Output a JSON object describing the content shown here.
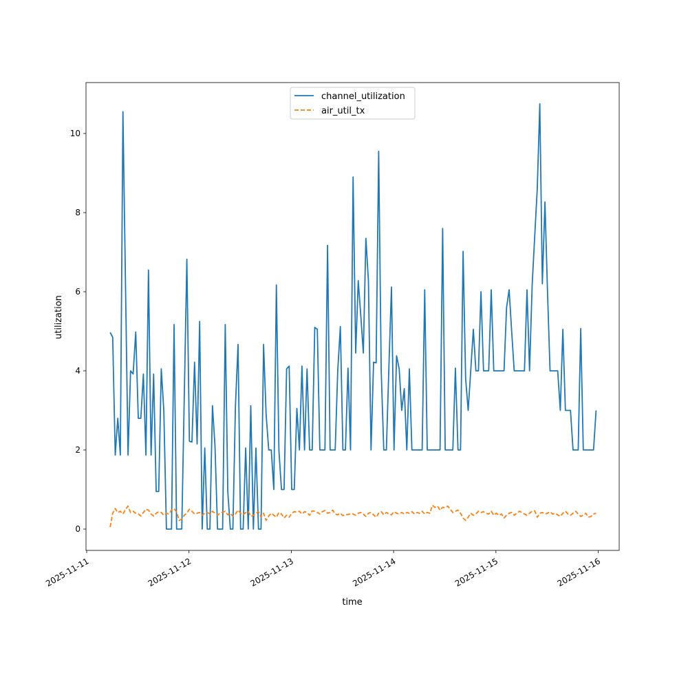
{
  "chart_data": {
    "type": "line",
    "title": "",
    "xlabel": "time",
    "ylabel": "utilization",
    "x_start": "2025-11-11T05:30",
    "x_interval_minutes": 36,
    "xlim_days_since_2025_11_11": [
      -0.01,
      5.21
    ],
    "ylim": [
      -0.54,
      11.3
    ],
    "x_ticks": [
      "2025-11-11",
      "2025-11-12",
      "2025-11-13",
      "2025-11-14",
      "2025-11-15",
      "2025-11-16"
    ],
    "y_ticks": [
      0,
      2,
      4,
      6,
      8,
      10
    ],
    "y_tick_labels": [
      "0",
      "2",
      "4",
      "6",
      "8",
      "10"
    ],
    "legend_position": "upper-center",
    "series": [
      {
        "name": "channel_utilization",
        "color": "#1f77b4",
        "style": "solid",
        "values": [
          4.97,
          4.85,
          1.87,
          2.8,
          1.87,
          10.55,
          6.2,
          1.87,
          4.0,
          3.92,
          4.98,
          2.8,
          2.8,
          3.92,
          1.87,
          6.55,
          1.87,
          3.92,
          0.95,
          0.95,
          4.05,
          3.0,
          0,
          0,
          0,
          5.17,
          0,
          0,
          0,
          3.4,
          6.82,
          2.22,
          2.2,
          4.22,
          2.15,
          5.25,
          0,
          2.05,
          0,
          0,
          3.12,
          2.1,
          0,
          0,
          0,
          5.17,
          0.95,
          0,
          0,
          3.1,
          4.67,
          0,
          0,
          2.05,
          0,
          3.12,
          0,
          2.05,
          0,
          0,
          4.67,
          2.9,
          2.0,
          2.0,
          1.0,
          6.17,
          2.0,
          1.0,
          1.0,
          4.05,
          4.12,
          1.0,
          1.0,
          3.05,
          2.0,
          4.12,
          2.0,
          4.05,
          2.0,
          2.0,
          5.1,
          5.05,
          2.0,
          2.0,
          2.0,
          7.17,
          2.0,
          2.0,
          2.0,
          4.0,
          5.12,
          2.0,
          2.0,
          4.07,
          2.0,
          8.9,
          4.45,
          6.28,
          5.4,
          4.45,
          7.35,
          6.28,
          2.0,
          4.22,
          4.2,
          9.55,
          4.0,
          2.0,
          2.0,
          4.12,
          6.12,
          2.0,
          4.38,
          4.05,
          3.0,
          3.55,
          2.0,
          4.05,
          2.0,
          2.0,
          2.0,
          2.0,
          2.0,
          6.05,
          2.0,
          2.0,
          2.0,
          2.0,
          2.0,
          2.0,
          7.6,
          2.0,
          2.0,
          2.0,
          2.0,
          4.07,
          2.0,
          2.0,
          7.02,
          3.8,
          3.0,
          4.0,
          5.05,
          4.0,
          4.0,
          6.0,
          4.0,
          4.0,
          4.0,
          6.05,
          4.0,
          4.0,
          4.0,
          4.0,
          4.0,
          5.6,
          6.05,
          5.0,
          4.0,
          4.0,
          4.0,
          4.0,
          4.0,
          6.05,
          4.0,
          6.17,
          7.4,
          8.6,
          10.75,
          6.2,
          8.27,
          6.0,
          4.0,
          4.0,
          4.0,
          4.0,
          3.0,
          5.05,
          3.0,
          3.0,
          3.0,
          2.0,
          2.0,
          2.0,
          5.07,
          2.0,
          2.0,
          2.0,
          2.0,
          2.0,
          3.0
        ]
      },
      {
        "name": "air_util_tx",
        "color": "#ff7f0e",
        "style": "dashed",
        "values": [
          0.05,
          0.4,
          0.52,
          0.42,
          0.45,
          0.38,
          0.5,
          0.58,
          0.42,
          0.45,
          0.4,
          0.38,
          0.33,
          0.42,
          0.5,
          0.48,
          0.38,
          0.33,
          0.4,
          0.44,
          0.42,
          0.35,
          0.4,
          0.38,
          0.48,
          0.52,
          0.43,
          0.22,
          0.25,
          0.35,
          0.4,
          0.5,
          0.45,
          0.38,
          0.4,
          0.42,
          0.35,
          0.4,
          0.42,
          0.38,
          0.45,
          0.4,
          0.35,
          0.4,
          0.43,
          0.45,
          0.36,
          0.4,
          0.32,
          0.38,
          0.48,
          0.4,
          0.36,
          0.42,
          0.45,
          0.32,
          0.35,
          0.4,
          0.44,
          0.3,
          0.4,
          0.22,
          0.33,
          0.4,
          0.35,
          0.3,
          0.42,
          0.38,
          0.28,
          0.35,
          0.3,
          0.4,
          0.44,
          0.43,
          0.45,
          0.38,
          0.44,
          0.42,
          0.35,
          0.46,
          0.45,
          0.42,
          0.38,
          0.44,
          0.47,
          0.4,
          0.42,
          0.48,
          0.38,
          0.36,
          0.4,
          0.34,
          0.36,
          0.37,
          0.38,
          0.38,
          0.35,
          0.4,
          0.42,
          0.38,
          0.32,
          0.4,
          0.42,
          0.36,
          0.3,
          0.4,
          0.44,
          0.36,
          0.42,
          0.38,
          0.36,
          0.44,
          0.4,
          0.38,
          0.42,
          0.38,
          0.42,
          0.4,
          0.44,
          0.38,
          0.42,
          0.4,
          0.45,
          0.38,
          0.42,
          0.4,
          0.6,
          0.55,
          0.58,
          0.48,
          0.55,
          0.54,
          0.58,
          0.5,
          0.42,
          0.45,
          0.48,
          0.4,
          0.28,
          0.22,
          0.3,
          0.4,
          0.35,
          0.38,
          0.45,
          0.42,
          0.44,
          0.4,
          0.38,
          0.45,
          0.35,
          0.4,
          0.35,
          0.38,
          0.28,
          0.35,
          0.4,
          0.42,
          0.35,
          0.4,
          0.45,
          0.42,
          0.38,
          0.35,
          0.4,
          0.45,
          0.46,
          0.3,
          0.4,
          0.42,
          0.38,
          0.4,
          0.44,
          0.38,
          0.4,
          0.36,
          0.32,
          0.4,
          0.45,
          0.38,
          0.35,
          0.4,
          0.45,
          0.38,
          0.32,
          0.35,
          0.4,
          0.3,
          0.32,
          0.38,
          0.4
        ]
      }
    ]
  }
}
